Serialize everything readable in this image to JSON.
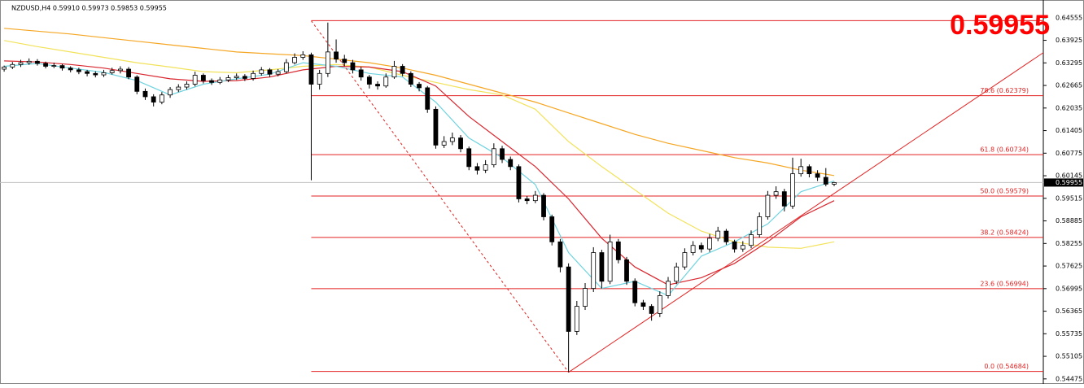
{
  "chart_data": {
    "type": "candlestick",
    "title": "NZDUSD,H4  0.59910 0.59973 0.59853 0.59955",
    "current_price": 0.59955,
    "xlim": [
      -0.5,
      125.2
    ],
    "ylim": [
      0.5438,
      0.6505
    ],
    "yticks": [
      0.64555,
      0.63925,
      0.63295,
      0.62665,
      0.62035,
      0.61405,
      0.60775,
      0.60145,
      0.59515,
      0.58885,
      0.58255,
      0.57625,
      0.56995,
      0.56365,
      0.55735,
      0.55105,
      0.54475
    ],
    "up_color": "#ffffff",
    "down_color": "#000000",
    "ohlc": [
      [
        0.6312,
        0.6322,
        0.6305,
        0.6318
      ],
      [
        0.6318,
        0.6332,
        0.6312,
        0.6325
      ],
      [
        0.6325,
        0.6338,
        0.6318,
        0.633
      ],
      [
        0.633,
        0.6342,
        0.6324,
        0.6334
      ],
      [
        0.6334,
        0.634,
        0.6322,
        0.6328
      ],
      [
        0.6328,
        0.6333,
        0.6314,
        0.632
      ],
      [
        0.632,
        0.633,
        0.6315,
        0.6322
      ],
      [
        0.6322,
        0.6326,
        0.6308,
        0.6315
      ],
      [
        0.6315,
        0.632,
        0.6303,
        0.631
      ],
      [
        0.631,
        0.6316,
        0.6298,
        0.6305
      ],
      [
        0.6305,
        0.631,
        0.6292,
        0.63
      ],
      [
        0.63,
        0.6306,
        0.6289,
        0.6296
      ],
      [
        0.6296,
        0.631,
        0.629,
        0.6302
      ],
      [
        0.6302,
        0.6316,
        0.6297,
        0.6308
      ],
      [
        0.6308,
        0.632,
        0.63,
        0.6312
      ],
      [
        0.6312,
        0.6318,
        0.6284,
        0.629
      ],
      [
        0.629,
        0.6295,
        0.6242,
        0.625
      ],
      [
        0.625,
        0.6258,
        0.6226,
        0.6235
      ],
      [
        0.6235,
        0.6242,
        0.6208,
        0.622
      ],
      [
        0.622,
        0.6248,
        0.6214,
        0.624
      ],
      [
        0.624,
        0.6262,
        0.6232,
        0.6255
      ],
      [
        0.6255,
        0.627,
        0.6248,
        0.6262
      ],
      [
        0.6262,
        0.6278,
        0.6255,
        0.627
      ],
      [
        0.627,
        0.6305,
        0.6264,
        0.6295
      ],
      [
        0.6295,
        0.63,
        0.6272,
        0.628
      ],
      [
        0.628,
        0.6286,
        0.6268,
        0.6275
      ],
      [
        0.6275,
        0.629,
        0.627,
        0.6282
      ],
      [
        0.6282,
        0.6296,
        0.6276,
        0.6288
      ],
      [
        0.6288,
        0.63,
        0.6282,
        0.6292
      ],
      [
        0.6292,
        0.6298,
        0.6279,
        0.6286
      ],
      [
        0.6286,
        0.6308,
        0.628,
        0.63
      ],
      [
        0.63,
        0.6318,
        0.6294,
        0.631
      ],
      [
        0.631,
        0.6315,
        0.629,
        0.6298
      ],
      [
        0.6298,
        0.6312,
        0.6292,
        0.6305
      ],
      [
        0.6305,
        0.634,
        0.63,
        0.633
      ],
      [
        0.633,
        0.6356,
        0.6325,
        0.6345
      ],
      [
        0.6345,
        0.6362,
        0.6338,
        0.6352
      ],
      [
        0.6352,
        0.6358,
        0.6002,
        0.627
      ],
      [
        0.627,
        0.631,
        0.6255,
        0.63
      ],
      [
        0.63,
        0.6442,
        0.629,
        0.636
      ],
      [
        0.636,
        0.6395,
        0.633,
        0.634
      ],
      [
        0.634,
        0.6352,
        0.632,
        0.633
      ],
      [
        0.633,
        0.6338,
        0.63,
        0.631
      ],
      [
        0.631,
        0.6318,
        0.628,
        0.629
      ],
      [
        0.629,
        0.6296,
        0.6258,
        0.627
      ],
      [
        0.627,
        0.6278,
        0.6255,
        0.6265
      ],
      [
        0.6265,
        0.63,
        0.626,
        0.629
      ],
      [
        0.629,
        0.6335,
        0.6285,
        0.632
      ],
      [
        0.632,
        0.6326,
        0.6292,
        0.63
      ],
      [
        0.63,
        0.6306,
        0.6262,
        0.627
      ],
      [
        0.627,
        0.6276,
        0.625,
        0.626
      ],
      [
        0.626,
        0.6265,
        0.619,
        0.62
      ],
      [
        0.62,
        0.6208,
        0.609,
        0.61
      ],
      [
        0.61,
        0.6125,
        0.6092,
        0.611
      ],
      [
        0.611,
        0.6135,
        0.61,
        0.612
      ],
      [
        0.612,
        0.6128,
        0.608,
        0.609
      ],
      [
        0.609,
        0.6096,
        0.603,
        0.604
      ],
      [
        0.604,
        0.605,
        0.6018,
        0.603
      ],
      [
        0.603,
        0.6058,
        0.6022,
        0.6045
      ],
      [
        0.6045,
        0.6105,
        0.6038,
        0.609
      ],
      [
        0.609,
        0.6098,
        0.605,
        0.606
      ],
      [
        0.606,
        0.6068,
        0.603,
        0.604
      ],
      [
        0.604,
        0.6046,
        0.594,
        0.595
      ],
      [
        0.595,
        0.5958,
        0.5935,
        0.5945
      ],
      [
        0.5945,
        0.5972,
        0.5938,
        0.596
      ],
      [
        0.596,
        0.5966,
        0.589,
        0.59
      ],
      [
        0.59,
        0.5906,
        0.582,
        0.583
      ],
      [
        0.583,
        0.5838,
        0.5745,
        0.576
      ],
      [
        0.576,
        0.577,
        0.5466,
        0.558
      ],
      [
        0.558,
        0.5665,
        0.557,
        0.565
      ],
      [
        0.565,
        0.5715,
        0.564,
        0.57
      ],
      [
        0.57,
        0.5815,
        0.569,
        0.58
      ],
      [
        0.58,
        0.5808,
        0.57,
        0.572
      ],
      [
        0.572,
        0.585,
        0.5712,
        0.583
      ],
      [
        0.583,
        0.5838,
        0.577,
        0.578
      ],
      [
        0.578,
        0.5788,
        0.571,
        0.572
      ],
      [
        0.572,
        0.5728,
        0.565,
        0.566
      ],
      [
        0.566,
        0.5668,
        0.564,
        0.565
      ],
      [
        0.565,
        0.5656,
        0.561,
        0.563
      ],
      [
        0.563,
        0.5692,
        0.562,
        0.568
      ],
      [
        0.568,
        0.5732,
        0.5672,
        0.572
      ],
      [
        0.572,
        0.5772,
        0.5712,
        0.576
      ],
      [
        0.576,
        0.5812,
        0.5752,
        0.58
      ],
      [
        0.58,
        0.5832,
        0.5792,
        0.582
      ],
      [
        0.582,
        0.5828,
        0.58,
        0.581
      ],
      [
        0.581,
        0.5852,
        0.5802,
        0.584
      ],
      [
        0.584,
        0.5872,
        0.5832,
        0.586
      ],
      [
        0.586,
        0.5866,
        0.5822,
        0.583
      ],
      [
        0.583,
        0.5836,
        0.58,
        0.581
      ],
      [
        0.581,
        0.5832,
        0.5802,
        0.582
      ],
      [
        0.582,
        0.5862,
        0.5812,
        0.585
      ],
      [
        0.585,
        0.5912,
        0.5842,
        0.59
      ],
      [
        0.59,
        0.5972,
        0.5892,
        0.596
      ],
      [
        0.596,
        0.5985,
        0.595,
        0.597
      ],
      [
        0.597,
        0.5978,
        0.5915,
        0.593
      ],
      [
        0.593,
        0.6065,
        0.5922,
        0.602
      ],
      [
        0.602,
        0.6062,
        0.6012,
        0.604
      ],
      [
        0.604,
        0.6046,
        0.601,
        0.602
      ],
      [
        0.602,
        0.603,
        0.6,
        0.601
      ],
      [
        0.601,
        0.6036,
        0.5985,
        0.5991
      ],
      [
        0.5991,
        0.59973,
        0.59853,
        0.59955
      ]
    ],
    "ma_x": [
      0,
      4,
      8,
      12,
      16,
      20,
      24,
      28,
      32,
      36,
      40,
      44,
      48,
      52,
      56,
      60,
      64,
      68,
      72,
      76,
      80,
      84,
      88,
      92,
      96,
      100
    ],
    "moving_averages": [
      {
        "color": "#f5a623",
        "values": [
          0.6426,
          0.6418,
          0.641,
          0.64,
          0.639,
          0.638,
          0.637,
          0.636,
          0.6355,
          0.635,
          0.634,
          0.633,
          0.6315,
          0.6295,
          0.627,
          0.6245,
          0.622,
          0.619,
          0.616,
          0.613,
          0.6105,
          0.6085,
          0.6065,
          0.605,
          0.603,
          0.6015
        ]
      },
      {
        "color": "#f2e25a",
        "values": [
          0.6392,
          0.6375,
          0.636,
          0.6345,
          0.633,
          0.6318,
          0.6305,
          0.6302,
          0.631,
          0.632,
          0.6325,
          0.6318,
          0.6295,
          0.6275,
          0.6255,
          0.624,
          0.62,
          0.611,
          0.604,
          0.5975,
          0.591,
          0.586,
          0.583,
          0.5815,
          0.5812,
          0.583
        ]
      },
      {
        "color": "#d9262e",
        "values": [
          0.6335,
          0.6332,
          0.6325,
          0.6315,
          0.63,
          0.6285,
          0.6278,
          0.628,
          0.629,
          0.631,
          0.632,
          0.6318,
          0.6305,
          0.6265,
          0.618,
          0.611,
          0.604,
          0.595,
          0.584,
          0.576,
          0.571,
          0.573,
          0.577,
          0.583,
          0.59,
          0.5945
        ]
      },
      {
        "color": "#6fd3df",
        "values": [
          0.632,
          0.6328,
          0.6315,
          0.6303,
          0.628,
          0.624,
          0.627,
          0.6285,
          0.6298,
          0.633,
          0.632,
          0.63,
          0.629,
          0.622,
          0.612,
          0.6065,
          0.599,
          0.58,
          0.57,
          0.572,
          0.568,
          0.579,
          0.583,
          0.588,
          0.597,
          0.6
        ]
      }
    ],
    "fib_color": "#e32222",
    "fib_start": 37,
    "fib_levels": [
      {
        "price": 0.64474
      },
      {
        "price": 0.62379,
        "label": "78.6  (0.62379)"
      },
      {
        "price": 0.60734,
        "label": "61.8  (0.60734)"
      },
      {
        "price": 0.59579,
        "label": "50.0  (0.59579)"
      },
      {
        "price": 0.58424,
        "label": "38.2  (0.58424)"
      },
      {
        "price": 0.56994,
        "label": "23.6  (0.56994)"
      },
      {
        "price": 0.54684,
        "label": "0.0  (0.54684)"
      }
    ],
    "trendlines": [
      {
        "from": [
          37,
          0.6447
        ],
        "to": [
          68,
          0.5466
        ],
        "style": "dashed"
      },
      {
        "from": [
          68,
          0.5466
        ],
        "to": [
          125.2,
          0.6358
        ],
        "style": "solid"
      }
    ]
  }
}
